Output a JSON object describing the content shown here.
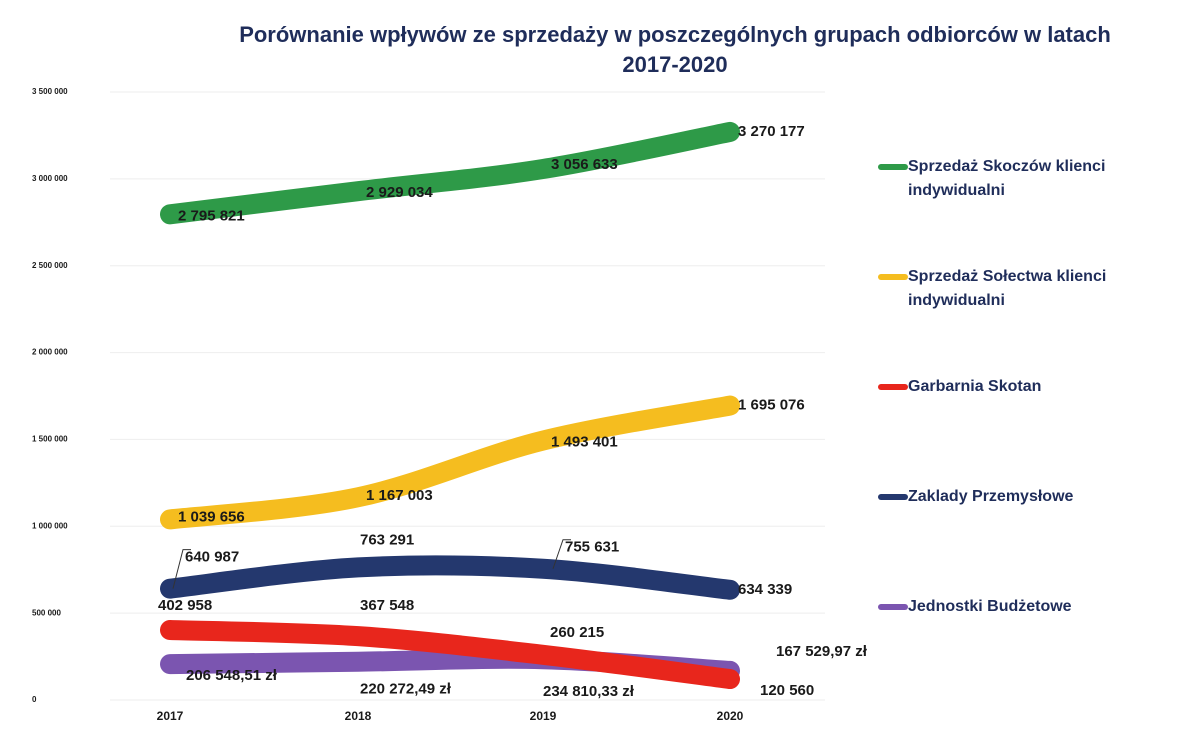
{
  "chart_data": {
    "type": "line",
    "title": "Porównanie wpływów ze sprzedaży w poszczególnych grupach odbiorców w latach 2017-2020",
    "categories": [
      "2017",
      "2018",
      "2019",
      "2020"
    ],
    "ylim": [
      0,
      3500000
    ],
    "yticks": [
      0,
      {
        "value": 500000,
        "label": "500 000"
      },
      {
        "value": 1000000,
        "label": "1 000 000"
      },
      {
        "value": 1500000,
        "label": "1 500 000"
      },
      {
        "value": 2000000,
        "label": "2 000 000"
      },
      {
        "value": 2500000,
        "label": "2 500 000"
      },
      {
        "value": 3000000,
        "label": "3 000 000"
      },
      {
        "value": 3500000,
        "label": "3 500 000"
      }
    ],
    "grid": true,
    "legend": "right",
    "series": [
      {
        "name": "Sprzedaż Skoczów klienci indywidualni",
        "color": "#2e9a48",
        "values": [
          2795821,
          2929034,
          3056633,
          3270177
        ],
        "value_labels": [
          "2 795 821",
          "2 929 034",
          "3 056 633",
          "3 270 177"
        ]
      },
      {
        "name": "Sprzedaż Sołectwa klienci indywidualni",
        "color": "#f5bd1f",
        "values": [
          1039656,
          1167003,
          1493401,
          1695076
        ],
        "value_labels": [
          "1 039 656",
          "1 167 003",
          "1 493 401",
          "1 695 076"
        ]
      },
      {
        "name": "Garbarnia Skotan",
        "color": "#e8261c",
        "values": [
          402958,
          367548,
          260215,
          120560
        ],
        "value_labels": [
          "402 958",
          "367 548",
          "260 215",
          "120 560"
        ]
      },
      {
        "name": "Zaklady Przemysłowe",
        "color": "#24386e",
        "values": [
          640987,
          763291,
          755631,
          634339
        ],
        "value_labels": [
          "640 987",
          "763 291",
          "755 631",
          "634 339"
        ]
      },
      {
        "name": "Jednostki Budżetowe",
        "color": "#7b55b0",
        "values": [
          206548.51,
          220272.49,
          234810.33,
          167529.97
        ],
        "value_labels": [
          "206 548,51 zł",
          "220 272,49 zł",
          "234 810,33 zł",
          "167 529,97 zł"
        ]
      }
    ]
  }
}
